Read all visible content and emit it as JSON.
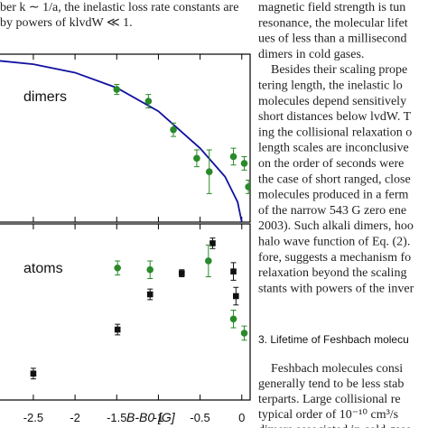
{
  "left_text": [
    "ber k ∼ 1/a, the inelastic loss rate constants are",
    "by powers of klvdW ≪ 1."
  ],
  "chart_data": {
    "type": "scatter",
    "x_label": "B-B0 [G]",
    "xlim": [
      -2.9,
      0.1
    ],
    "xticks": [
      -2.5,
      -2,
      -1.5,
      -1,
      -0.5,
      0
    ],
    "panels": [
      {
        "label": "dimers",
        "ylim": [
          0,
          10
        ],
        "series": [
          {
            "style": "line",
            "color": "#1010a0",
            "x": [
              -2.9,
              -2.5,
              -2,
              -1.5,
              -1,
              -0.5,
              -0.2,
              -0.05,
              0
            ],
            "values": [
              9.6,
              9.4,
              8.9,
              8.0,
              6.6,
              4.4,
              2.7,
              1.2,
              0
            ]
          },
          {
            "style": "circle",
            "color": "#2a8a2a",
            "x": [
              -1.5,
              -1.12,
              -0.82,
              -0.54,
              -0.39,
              -0.1,
              0.03,
              0.08
            ],
            "values": [
              7.9,
              7.2,
              5.5,
              3.8,
              3.0,
              3.9,
              3.5,
              2.1
            ],
            "errors": [
              0.3,
              0.4,
              0.4,
              0.5,
              1.3,
              0.5,
              0.4,
              0.4
            ]
          }
        ]
      },
      {
        "label": "atoms",
        "ylim": [
          0,
          10
        ],
        "series": [
          {
            "style": "square",
            "color": "#111111",
            "x": [
              -2.5,
              -1.49,
              -1.1,
              -0.72,
              -0.35,
              -0.1,
              -0.07
            ],
            "values": [
              1.5,
              4.0,
              6.0,
              7.2,
              8.9,
              7.3,
              5.9
            ],
            "errors": [
              0.3,
              0.3,
              0.3,
              0.2,
              0.3,
              0.5,
              0.5
            ]
          },
          {
            "style": "circle",
            "color": "#2a8a2a",
            "x": [
              -1.49,
              -1.1,
              -0.4,
              -0.1,
              0.03
            ],
            "values": [
              7.5,
              7.4,
              7.9,
              4.6,
              3.8
            ],
            "errors": [
              0.4,
              0.5,
              0.9,
              0.5,
              0.4
            ]
          }
        ]
      }
    ]
  },
  "right_text": {
    "lines_top": [
      "magnetic field strength is tun",
      "resonance, the molecular lifet",
      "ues of less than a millisecond",
      "dimers in cold gases.",
      "Besides their scaling prope",
      "tering length, the inelastic lo",
      "molecules depend sensitively",
      "short distances below lvdW. T",
      "ing the collisional relaxation o",
      "length scales are inconclusive",
      "on the order of seconds were",
      "the case of short ranged, close",
      "molecules produced in a ferm",
      "of the narrow 543 G zero ene",
      "2003). Such alkali dimers, hoo",
      "halo wave function of Eq. (2).",
      "fore, suggests a mechanism fo",
      "relaxation beyond the scaling",
      "stants with powers of the inver"
    ],
    "section_heading": "3.  Lifetime of Feshbach molecu",
    "lines_bottom": [
      "Feshbach molecules consi",
      "generally tend to be less stab",
      "terparts.  Large collisional re",
      "typical order of 10⁻¹⁰ cm³/s",
      "dimers associated in cold gase"
    ]
  }
}
